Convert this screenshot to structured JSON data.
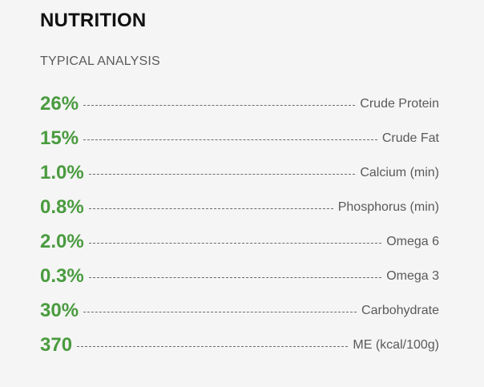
{
  "header": {
    "title": "NUTRITION",
    "subtitle": "TYPICAL ANALYSIS"
  },
  "colors": {
    "value_green": "#4a9b3f",
    "background": "#f5f5f5"
  },
  "nutrients": [
    {
      "value": "26%",
      "label": "Crude Protein"
    },
    {
      "value": "15%",
      "label": "Crude Fat"
    },
    {
      "value": "1.0%",
      "label": "Calcium (min)"
    },
    {
      "value": "0.8%",
      "label": "Phosphorus (min)"
    },
    {
      "value": "2.0%",
      "label": "Omega 6"
    },
    {
      "value": "0.3%",
      "label": "Omega 3"
    },
    {
      "value": "30%",
      "label": "Carbohydrate"
    },
    {
      "value": "370",
      "label": "ME (kcal/100g)"
    }
  ]
}
